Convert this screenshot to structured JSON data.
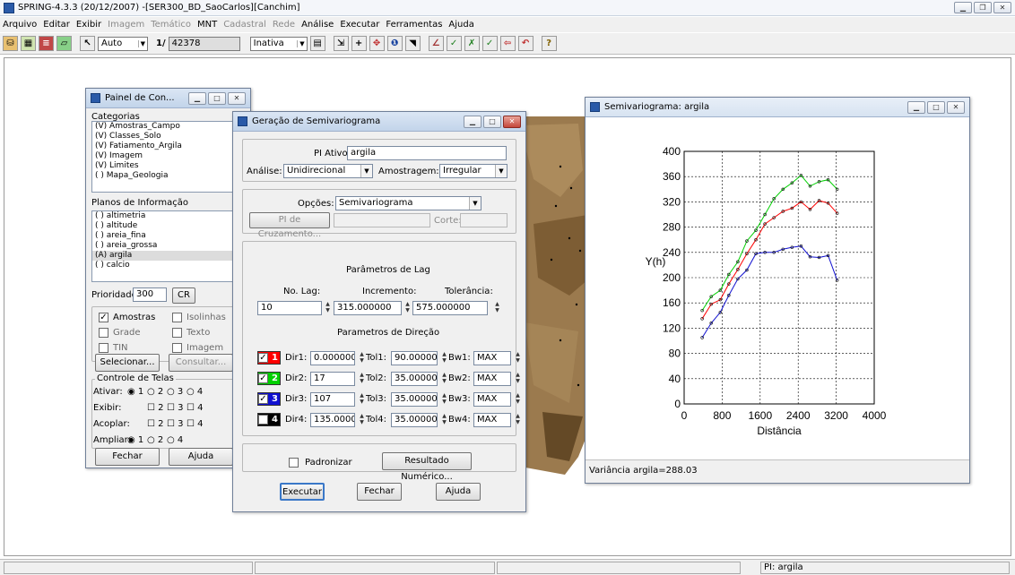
{
  "app": {
    "title": "SPRING-4.3.3 (20/12/2007) -[SER300_BD_SaoCarlos][Canchim]",
    "menu": [
      "Arquivo",
      "Editar",
      "Exibir",
      "Imagem",
      "Temático",
      "MNT",
      "Cadastral",
      "Rede",
      "Análise",
      "Executar",
      "Ferramentas",
      "Ajuda"
    ],
    "menu_disabled": [
      false,
      false,
      false,
      true,
      true,
      false,
      true,
      true,
      false,
      false,
      false,
      false
    ]
  },
  "toolbar": {
    "zoom_mode": "Auto",
    "scale_label": "1/",
    "scale_value": "42378",
    "mode_value": "Inativa"
  },
  "statusbar": {
    "pi": "PI: argila"
  },
  "painel": {
    "title": "Painel de Con...",
    "categorias_label": "Categorias",
    "categorias": [
      "(V) Amostras_Campo",
      "(V) Classes_Solo",
      "(V) Fatiamento_Argila",
      "(V) Imagem",
      "(V) Limites",
      "( ) Mapa_Geologia"
    ],
    "planos_label": "Planos de Informação",
    "planos": [
      "( ) altimetria",
      "( ) altitude",
      "( ) areia_fina",
      "( ) areia_grossa",
      "(A) argila",
      "( ) calcio"
    ],
    "planos_selected_index": 4,
    "prioridade_label": "Prioridade:",
    "prioridade_value": "300",
    "cr_label": "CR",
    "checks": [
      {
        "label": "Amostras",
        "checked": true
      },
      {
        "label": "Isolinhas",
        "checked": false
      },
      {
        "label": "Grade",
        "checked": false
      },
      {
        "label": "Texto",
        "checked": false
      },
      {
        "label": "TIN",
        "checked": false
      },
      {
        "label": "Imagem",
        "checked": false
      }
    ],
    "selecionar": "Selecionar...",
    "consultar": "Consultar...",
    "controle_label": "Controle de Telas",
    "ativar_label": "Ativar:",
    "exibir_label": "Exibir:",
    "acoplar_label": "Acoplar:",
    "ampliar_label": "Ampliar:",
    "telas": [
      "1",
      "2",
      "3",
      "4"
    ],
    "ampliar_opts": [
      "1",
      "2",
      "4"
    ],
    "fechar": "Fechar",
    "ajuda": "Ajuda"
  },
  "semiv": {
    "title": "Geração de Semivariograma",
    "pi_label": "PI Ativo:",
    "pi_value": "argila",
    "analise_label": "Análise:",
    "analise_value": "Unidirecional",
    "amostragem_label": "Amostragem:",
    "amostragem_value": "Irregular",
    "opcoes_label": "Opções:",
    "opcoes_value": "Semivariograma",
    "pi_cruzamento": "PI de Cruzamento...",
    "corte_label": "Corte:",
    "lag_title": "Parâmetros de Lag",
    "nolag_label": "No. Lag:",
    "nolag_value": "10",
    "incremento_label": "Incremento:",
    "incremento_value": "315.000000",
    "tolerancia_label": "Tolerância:",
    "tolerancia_value": "575.000000",
    "dir_title": "Parametros de Direção",
    "dirs": [
      {
        "n": "1",
        "color": "#ff0000",
        "checked": true,
        "dir_label": "Dir1:",
        "dir_value": "0.000000",
        "tol_label": "Tol1:",
        "tol_value": "90.000000",
        "bw_label": "Bw1:",
        "bw_value": "MAX"
      },
      {
        "n": "2",
        "color": "#00d000",
        "checked": true,
        "dir_label": "Dir2:",
        "dir_value": "17",
        "tol_label": "Tol2:",
        "tol_value": "35.000000",
        "bw_label": "Bw2:",
        "bw_value": "MAX"
      },
      {
        "n": "3",
        "color": "#1010d0",
        "checked": true,
        "dir_label": "Dir3:",
        "dir_value": "107",
        "tol_label": "Tol3:",
        "tol_value": "35.000000",
        "bw_label": "Bw3:",
        "bw_value": "MAX"
      },
      {
        "n": "4",
        "color": "#000000",
        "checked": false,
        "dir_label": "Dir4:",
        "dir_value": "135.0000",
        "tol_label": "Tol4:",
        "tol_value": "35.000000",
        "bw_label": "Bw4:",
        "bw_value": "MAX"
      }
    ],
    "padronizar": "Padronizar",
    "resultado": "Resultado Numérico...",
    "executar": "Executar",
    "fechar": "Fechar",
    "ajuda": "Ajuda"
  },
  "graph": {
    "title": "Semivariograma: argila",
    "status": "Variância argila=288.03"
  },
  "chart_data": {
    "type": "line",
    "xlabel": "Distância",
    "ylabel": "Y(h)",
    "xlim": [
      0,
      4000
    ],
    "ylim": [
      0,
      400
    ],
    "xticks": [
      0,
      800,
      1600,
      2400,
      3200,
      4000
    ],
    "yticks": [
      0,
      40,
      80,
      120,
      160,
      200,
      240,
      280,
      320,
      360,
      400
    ],
    "grid": true,
    "series": [
      {
        "color": "#00d000",
        "x": [
          380,
          570,
          760,
          940,
          1130,
          1320,
          1510,
          1700,
          1890,
          2080,
          2270,
          2460,
          2650,
          2840,
          3030,
          3220
        ],
        "y": [
          148,
          170,
          180,
          205,
          225,
          258,
          275,
          300,
          325,
          340,
          350,
          362,
          345,
          352,
          355,
          340
        ]
      },
      {
        "color": "#ff0000",
        "x": [
          380,
          570,
          760,
          940,
          1130,
          1320,
          1510,
          1700,
          1890,
          2080,
          2270,
          2460,
          2650,
          2840,
          3030,
          3220
        ],
        "y": [
          135,
          158,
          165,
          190,
          213,
          238,
          260,
          285,
          295,
          305,
          310,
          320,
          308,
          322,
          318,
          302
        ]
      },
      {
        "color": "#1010d0",
        "x": [
          380,
          570,
          760,
          940,
          1130,
          1320,
          1510,
          1700,
          1890,
          2080,
          2270,
          2460,
          2650,
          2840,
          3030,
          3220
        ],
        "y": [
          105,
          128,
          145,
          172,
          198,
          212,
          238,
          240,
          240,
          245,
          248,
          250,
          233,
          232,
          235,
          196
        ]
      }
    ]
  }
}
